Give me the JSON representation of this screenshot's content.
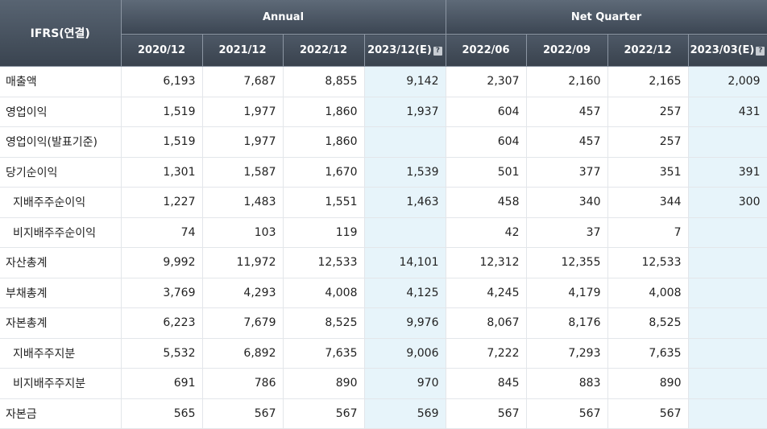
{
  "corner_label": "IFRS(연결)",
  "groups": {
    "annual": "Annual",
    "quarter": "Net Quarter"
  },
  "periods": [
    "2020/12",
    "2021/12",
    "2022/12",
    "2023/12(E)",
    "2022/06",
    "2022/09",
    "2022/12",
    "2023/03(E)"
  ],
  "estimate_icon": "?",
  "rows": [
    {
      "label": "매출액",
      "sub": false,
      "values": [
        "6,193",
        "7,687",
        "8,855",
        "9,142",
        "2,307",
        "2,160",
        "2,165",
        "2,009"
      ]
    },
    {
      "label": "영업이익",
      "sub": false,
      "values": [
        "1,519",
        "1,977",
        "1,860",
        "1,937",
        "604",
        "457",
        "257",
        "431"
      ]
    },
    {
      "label": "영업이익(발표기준)",
      "sub": false,
      "values": [
        "1,519",
        "1,977",
        "1,860",
        "",
        "604",
        "457",
        "257",
        ""
      ]
    },
    {
      "label": "당기순이익",
      "sub": false,
      "values": [
        "1,301",
        "1,587",
        "1,670",
        "1,539",
        "501",
        "377",
        "351",
        "391"
      ]
    },
    {
      "label": "지배주주순이익",
      "sub": true,
      "values": [
        "1,227",
        "1,483",
        "1,551",
        "1,463",
        "458",
        "340",
        "344",
        "300"
      ]
    },
    {
      "label": "비지배주주순이익",
      "sub": true,
      "values": [
        "74",
        "103",
        "119",
        "",
        "42",
        "37",
        "7",
        ""
      ]
    },
    {
      "label": "자산총계",
      "sub": false,
      "values": [
        "9,992",
        "11,972",
        "12,533",
        "14,101",
        "12,312",
        "12,355",
        "12,533",
        ""
      ]
    },
    {
      "label": "부채총계",
      "sub": false,
      "values": [
        "3,769",
        "4,293",
        "4,008",
        "4,125",
        "4,245",
        "4,179",
        "4,008",
        ""
      ]
    },
    {
      "label": "자본총계",
      "sub": false,
      "values": [
        "6,223",
        "7,679",
        "8,525",
        "9,976",
        "8,067",
        "8,176",
        "8,525",
        ""
      ]
    },
    {
      "label": "지배주주지분",
      "sub": true,
      "values": [
        "5,532",
        "6,892",
        "7,635",
        "9,006",
        "7,222",
        "7,293",
        "7,635",
        ""
      ]
    },
    {
      "label": "비지배주주지분",
      "sub": true,
      "values": [
        "691",
        "786",
        "890",
        "970",
        "845",
        "883",
        "890",
        ""
      ]
    },
    {
      "label": "자본금",
      "sub": false,
      "values": [
        "565",
        "567",
        "567",
        "569",
        "567",
        "567",
        "567",
        ""
      ]
    }
  ],
  "colors": {
    "header_dark": "#3c4653",
    "estimate_bg": "#e7f4fa",
    "grid": "#e3e6ea"
  }
}
